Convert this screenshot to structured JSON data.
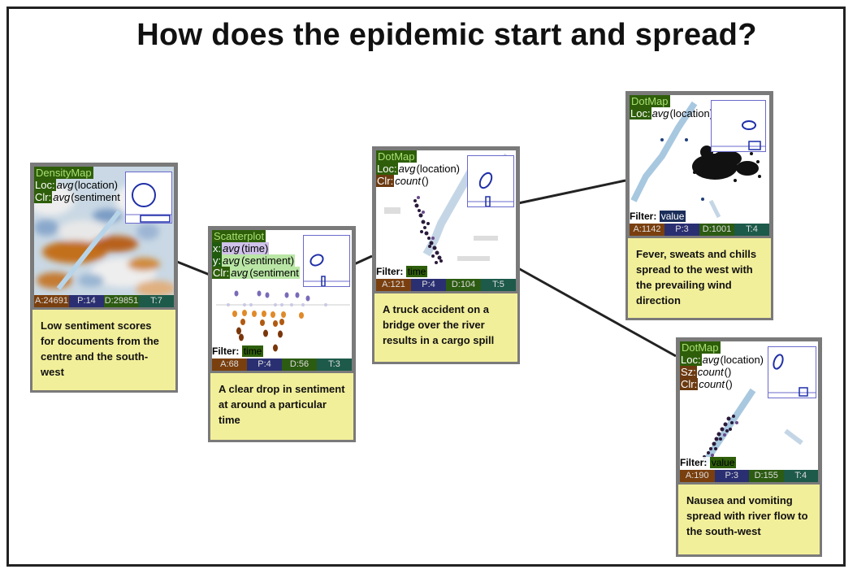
{
  "title": "How does the epidemic start and spread?",
  "cards": {
    "density": {
      "viz_type": "DensityMap",
      "enc": [
        {
          "key": "Loc:",
          "fn": "avg",
          "field": "(location)"
        },
        {
          "key": "Clr:",
          "fn": "avg",
          "field": "(sentiment"
        }
      ],
      "stats": [
        "A:24691",
        "P:14",
        "D:29851",
        "T:7"
      ],
      "note": "Low sentiment scores for documents from the centre and the south-west"
    },
    "scatter": {
      "viz_type": "Scatterplot",
      "enc": [
        {
          "key": "x:",
          "fn": "avg",
          "field": "(time)"
        },
        {
          "key": "y:",
          "fn": "avg",
          "field": "(sentiment)"
        },
        {
          "key": "Clr:",
          "fn": "avg",
          "field": "(sentiment"
        }
      ],
      "filter_label": "Filter:",
      "filter_value": "time",
      "stats": [
        "A:68",
        "P:4",
        "D:56",
        "T:3"
      ],
      "note": "A clear drop in sentiment at around a particular time"
    },
    "truck": {
      "viz_type": "DotMap",
      "enc": [
        {
          "key": "Loc:",
          "fn": "avg",
          "field": "(location)"
        },
        {
          "key": "Clr:",
          "fn": "count",
          "field": "()"
        }
      ],
      "filter_label": "Filter:",
      "filter_value": "time",
      "stats": [
        "A:121",
        "P:4",
        "D:104",
        "T:5"
      ],
      "note": "A truck accident on a bridge over the river results in a cargo spill"
    },
    "fever": {
      "viz_type": "DotMap",
      "enc": [
        {
          "key": "Loc:",
          "fn": "avg",
          "field": "(location)"
        }
      ],
      "filter_label": "Filter:",
      "filter_value": "value",
      "stats": [
        "A:1142",
        "P:3",
        "D:1001",
        "T:4"
      ],
      "note": "Fever, sweats and chills spread to the west with the prevailing wind direction"
    },
    "nausea": {
      "viz_type": "DotMap",
      "enc": [
        {
          "key": "Loc:",
          "fn": "avg",
          "field": "(location)"
        },
        {
          "key": "Sz:",
          "fn": "count",
          "field": "()"
        },
        {
          "key": "Clr:",
          "fn": "count",
          "field": "()"
        }
      ],
      "filter_label": "Filter:",
      "filter_value": "value",
      "stats": [
        "A:190",
        "P:3",
        "D:155",
        "T:4"
      ],
      "note": "Nausea and vomiting spread with river flow to the south-west"
    }
  },
  "colors": {
    "note_bg": "#f2ef9a",
    "card_border": "#7a7a7a",
    "viz_type_bg": "#2e5e0a",
    "stat_a": "#7a3f0e",
    "stat_p": "#2a2f72",
    "stat_d": "#2c5b12",
    "stat_t": "#1d5a4a"
  }
}
